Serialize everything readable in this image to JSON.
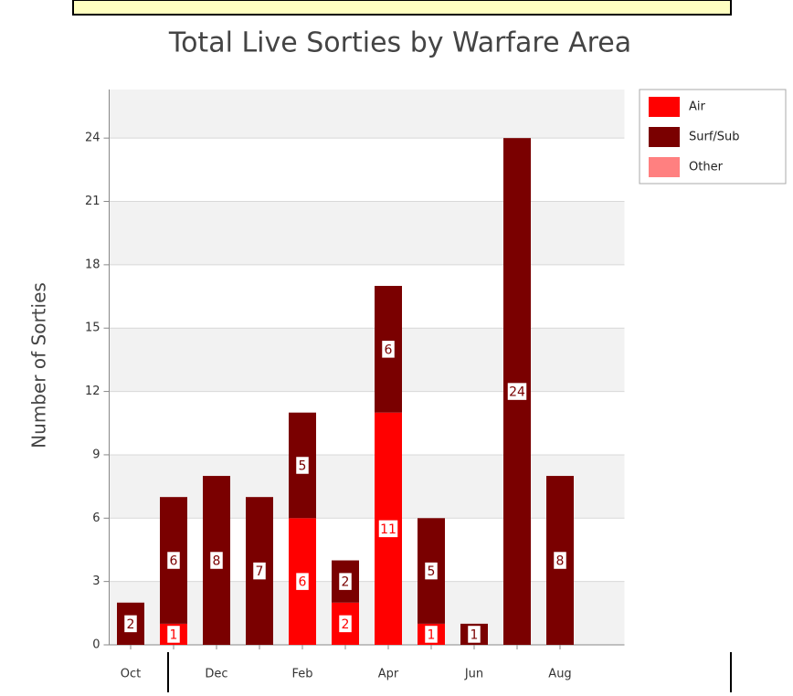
{
  "chart_data": {
    "type": "bar",
    "stacked": true,
    "title": "Total Live Sorties by Warfare Area",
    "y_label": "Number of Sorties",
    "categories": [
      "Oct",
      null,
      "Dec",
      null,
      "Feb",
      null,
      "Apr",
      null,
      "Jun",
      null,
      "Aug"
    ],
    "series": [
      {
        "name": "Air",
        "color": "#ff0000",
        "values": [
          null,
          1,
          null,
          null,
          6,
          2,
          11,
          1,
          null,
          null,
          null
        ]
      },
      {
        "name": "Surf/Sub",
        "color": "#7a0000",
        "values": [
          2,
          6,
          8,
          7,
          5,
          2,
          6,
          5,
          1,
          24,
          8
        ]
      },
      {
        "name": "Other",
        "color": "#ff8080",
        "values": [
          null,
          null,
          null,
          null,
          null,
          null,
          null,
          null,
          null,
          null,
          null
        ]
      }
    ],
    "ylim": [
      0,
      26.3
    ],
    "yticks": [
      0,
      3,
      6,
      9,
      12,
      15,
      18,
      21,
      24
    ],
    "grid": true,
    "legend": "top-right",
    "data_labels": true
  }
}
